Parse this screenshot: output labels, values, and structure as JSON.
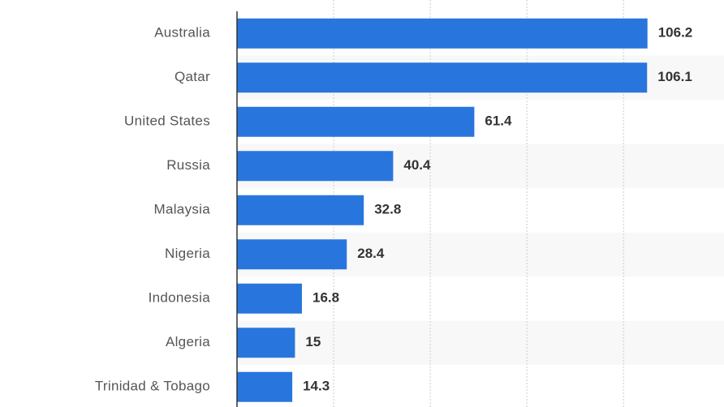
{
  "chart_data": {
    "type": "bar",
    "orientation": "horizontal",
    "categories": [
      "Australia",
      "Qatar",
      "United States",
      "Russia",
      "Malaysia",
      "Nigeria",
      "Indonesia",
      "Algeria",
      "Trinidad & Tobago"
    ],
    "values": [
      106.2,
      106.1,
      61.4,
      40.4,
      32.8,
      28.4,
      16.8,
      15,
      14.3
    ],
    "color": "#2876dd",
    "xlim": [
      0,
      126
    ],
    "xticks": [
      25,
      50,
      75,
      100
    ],
    "grid": true
  }
}
